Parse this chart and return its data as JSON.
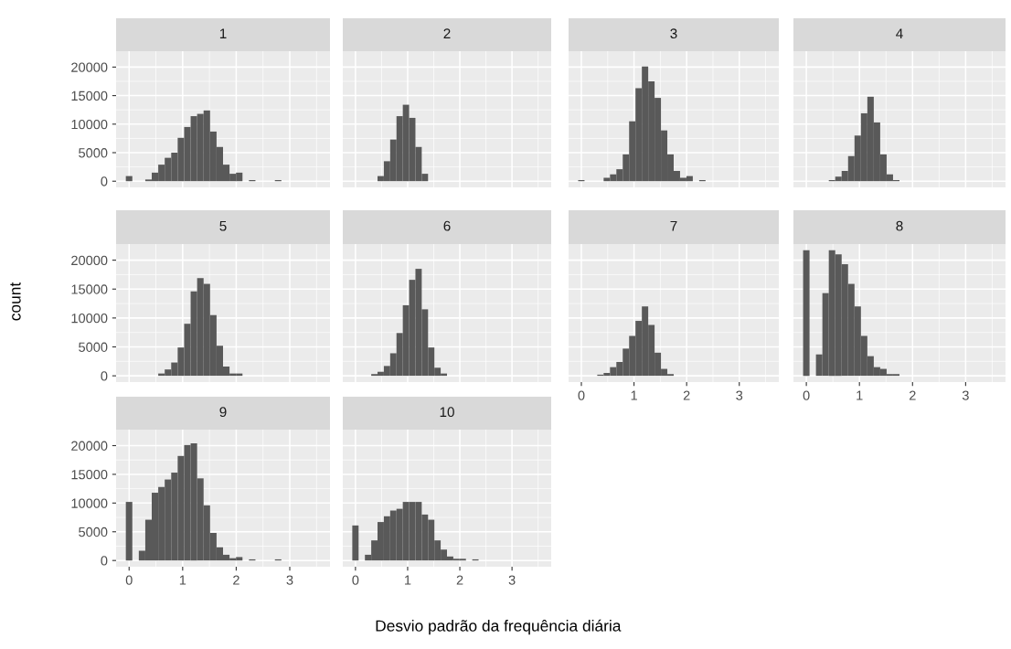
{
  "chart_data": [
    {
      "type": "histogram",
      "title": "1",
      "color": "#595959",
      "grid": true,
      "tick_labels": "y",
      "xlim": [
        -0.243,
        3.751
      ],
      "xticks": [
        0,
        1,
        2,
        3
      ],
      "ylim": [
        -1085,
        22785
      ],
      "yticks": [
        0,
        5000,
        10000,
        15000,
        20000
      ],
      "bins": [
        -0.061,
        0.06,
        0.181,
        0.302,
        0.423,
        0.544,
        0.665,
        0.786,
        0.907,
        1.028,
        1.149,
        1.27,
        1.391,
        1.512,
        1.633,
        1.754,
        1.875,
        1.996,
        2.117,
        2.238,
        2.359,
        2.48,
        2.601,
        2.722,
        2.843,
        2.964,
        3.085,
        3.206,
        3.327,
        3.448,
        3.569
      ],
      "values": [
        900,
        0,
        0,
        300,
        1500,
        2900,
        4100,
        5000,
        7600,
        9500,
        11400,
        11800,
        12400,
        8700,
        6000,
        2900,
        1300,
        1500,
        0,
        200,
        0,
        0,
        0,
        200,
        0,
        0,
        0,
        0,
        0,
        0
      ]
    },
    {
      "type": "histogram",
      "title": "2",
      "color": "#595959",
      "grid": true,
      "tick_labels": false,
      "xlim": [
        -0.243,
        3.751
      ],
      "xticks": [
        0,
        1,
        2,
        3
      ],
      "ylim": [
        -1085,
        22785
      ],
      "yticks": [
        0,
        5000,
        10000,
        15000,
        20000
      ],
      "bins": [
        -0.061,
        0.06,
        0.181,
        0.302,
        0.423,
        0.544,
        0.665,
        0.786,
        0.907,
        1.028,
        1.149,
        1.27,
        1.391,
        1.512,
        1.633,
        1.754,
        1.875,
        1.996,
        2.117,
        2.238,
        2.359,
        2.48,
        2.601,
        2.722,
        2.843,
        2.964,
        3.085,
        3.206,
        3.327,
        3.448,
        3.569
      ],
      "values": [
        0,
        0,
        0,
        0,
        900,
        3500,
        7300,
        11400,
        13400,
        11100,
        6000,
        1300,
        0,
        0,
        0,
        0,
        0,
        0,
        0,
        0,
        0,
        0,
        0,
        0,
        0,
        0,
        0,
        0,
        0,
        0
      ]
    },
    {
      "type": "histogram",
      "title": "3",
      "color": "#595959",
      "grid": true,
      "tick_labels": false,
      "xlim": [
        -0.243,
        3.751
      ],
      "xticks": [
        0,
        1,
        2,
        3
      ],
      "ylim": [
        -1085,
        22785
      ],
      "yticks": [
        0,
        5000,
        10000,
        15000,
        20000
      ],
      "bins": [
        -0.061,
        0.06,
        0.181,
        0.302,
        0.423,
        0.544,
        0.665,
        0.786,
        0.907,
        1.028,
        1.149,
        1.27,
        1.391,
        1.512,
        1.633,
        1.754,
        1.875,
        1.996,
        2.117,
        2.238,
        2.359,
        2.48,
        2.601,
        2.722,
        2.843,
        2.964,
        3.085,
        3.206,
        3.327,
        3.448,
        3.569
      ],
      "values": [
        200,
        0,
        0,
        0,
        600,
        1200,
        2100,
        4700,
        10500,
        16300,
        20100,
        17500,
        14600,
        8900,
        4700,
        1800,
        600,
        900,
        0,
        200,
        0,
        0,
        0,
        0,
        0,
        0,
        0,
        0,
        0,
        0
      ]
    },
    {
      "type": "histogram",
      "title": "4",
      "color": "#595959",
      "grid": true,
      "tick_labels": false,
      "xlim": [
        -0.243,
        3.751
      ],
      "xticks": [
        0,
        1,
        2,
        3
      ],
      "ylim": [
        -1085,
        22785
      ],
      "yticks": [
        0,
        5000,
        10000,
        15000,
        20000
      ],
      "bins": [
        -0.061,
        0.06,
        0.181,
        0.302,
        0.423,
        0.544,
        0.665,
        0.786,
        0.907,
        1.028,
        1.149,
        1.27,
        1.391,
        1.512,
        1.633,
        1.754,
        1.875,
        1.996,
        2.117,
        2.238,
        2.359,
        2.48,
        2.601,
        2.722,
        2.843,
        2.964,
        3.085,
        3.206,
        3.327,
        3.448,
        3.569
      ],
      "values": [
        0,
        0,
        0,
        0,
        200,
        800,
        1800,
        4400,
        8000,
        11900,
        14800,
        10300,
        4700,
        1200,
        200,
        0,
        0,
        0,
        0,
        0,
        0,
        0,
        0,
        0,
        0,
        0,
        0,
        0,
        0,
        0
      ]
    },
    {
      "type": "histogram",
      "title": "5",
      "ylabel": "count",
      "color": "#595959",
      "grid": true,
      "tick_labels": "y",
      "xlim": [
        -0.243,
        3.751
      ],
      "xticks": [
        0,
        1,
        2,
        3
      ],
      "ylim": [
        -1085,
        22785
      ],
      "yticks": [
        0,
        5000,
        10000,
        15000,
        20000
      ],
      "bins": [
        -0.061,
        0.06,
        0.181,
        0.302,
        0.423,
        0.544,
        0.665,
        0.786,
        0.907,
        1.028,
        1.149,
        1.27,
        1.391,
        1.512,
        1.633,
        1.754,
        1.875,
        1.996,
        2.117,
        2.238,
        2.359,
        2.48,
        2.601,
        2.722,
        2.843,
        2.964,
        3.085,
        3.206,
        3.327,
        3.448,
        3.569
      ],
      "values": [
        0,
        0,
        0,
        0,
        0,
        400,
        1100,
        2300,
        4900,
        9000,
        14600,
        16900,
        15900,
        10500,
        5200,
        1600,
        400,
        400,
        0,
        0,
        0,
        0,
        0,
        0,
        0,
        0,
        0,
        0,
        0,
        0
      ]
    },
    {
      "type": "histogram",
      "title": "6",
      "color": "#595959",
      "grid": true,
      "tick_labels": false,
      "xlim": [
        -0.243,
        3.751
      ],
      "xticks": [
        0,
        1,
        2,
        3
      ],
      "ylim": [
        -1085,
        22785
      ],
      "yticks": [
        0,
        5000,
        10000,
        15000,
        20000
      ],
      "bins": [
        -0.061,
        0.06,
        0.181,
        0.302,
        0.423,
        0.544,
        0.665,
        0.786,
        0.907,
        1.028,
        1.149,
        1.27,
        1.391,
        1.512,
        1.633,
        1.754,
        1.875,
        1.996,
        2.117,
        2.238,
        2.359,
        2.48,
        2.601,
        2.722,
        2.843,
        2.964,
        3.085,
        3.206,
        3.327,
        3.448,
        3.569
      ],
      "values": [
        0,
        0,
        0,
        300,
        700,
        1700,
        3900,
        7400,
        12200,
        16600,
        18500,
        11500,
        4900,
        1400,
        400,
        0,
        0,
        0,
        0,
        0,
        0,
        0,
        0,
        0,
        0,
        0,
        0,
        0,
        0,
        0
      ]
    },
    {
      "type": "histogram",
      "title": "7",
      "color": "#595959",
      "grid": true,
      "tick_labels": "x",
      "xlim": [
        -0.243,
        3.751
      ],
      "xticks": [
        0,
        1,
        2,
        3
      ],
      "ylim": [
        -1085,
        22785
      ],
      "yticks": [
        0,
        5000,
        10000,
        15000,
        20000
      ],
      "bins": [
        -0.061,
        0.06,
        0.181,
        0.302,
        0.423,
        0.544,
        0.665,
        0.786,
        0.907,
        1.028,
        1.149,
        1.27,
        1.391,
        1.512,
        1.633,
        1.754,
        1.875,
        1.996,
        2.117,
        2.238,
        2.359,
        2.48,
        2.601,
        2.722,
        2.843,
        2.964,
        3.085,
        3.206,
        3.327,
        3.448,
        3.569
      ],
      "values": [
        0,
        0,
        0,
        200,
        500,
        1500,
        2400,
        4700,
        6900,
        9500,
        12000,
        8800,
        4000,
        1200,
        300,
        0,
        0,
        0,
        0,
        0,
        0,
        0,
        0,
        0,
        0,
        0,
        0,
        0,
        0,
        0
      ]
    },
    {
      "type": "histogram",
      "title": "8",
      "color": "#595959",
      "grid": true,
      "tick_labels": "x",
      "xlim": [
        -0.243,
        3.751
      ],
      "xticks": [
        0,
        1,
        2,
        3
      ],
      "ylim": [
        -1085,
        22785
      ],
      "yticks": [
        0,
        5000,
        10000,
        15000,
        20000
      ],
      "bins": [
        -0.061,
        0.06,
        0.181,
        0.302,
        0.423,
        0.544,
        0.665,
        0.786,
        0.907,
        1.028,
        1.149,
        1.27,
        1.391,
        1.512,
        1.633,
        1.754,
        1.875,
        1.996,
        2.117,
        2.238,
        2.359,
        2.48,
        2.601,
        2.722,
        2.843,
        2.964,
        3.085,
        3.206,
        3.327,
        3.448,
        3.569
      ],
      "values": [
        21700,
        0,
        3700,
        14300,
        21700,
        21000,
        19300,
        15900,
        12000,
        6900,
        3400,
        1500,
        1200,
        300,
        300,
        0,
        0,
        0,
        0,
        0,
        0,
        0,
        0,
        0,
        0,
        0,
        0,
        0,
        0,
        0
      ]
    },
    {
      "type": "histogram",
      "title": "9",
      "color": "#595959",
      "grid": true,
      "xlim": [
        -0.243,
        3.751
      ],
      "xticks": [
        0,
        1,
        2,
        3
      ],
      "ylim": [
        -1085,
        22785
      ],
      "yticks": [
        0,
        5000,
        10000,
        15000,
        20000
      ],
      "bins": [
        -0.061,
        0.06,
        0.181,
        0.302,
        0.423,
        0.544,
        0.665,
        0.786,
        0.907,
        1.028,
        1.149,
        1.27,
        1.391,
        1.512,
        1.633,
        1.754,
        1.875,
        1.996,
        2.117,
        2.238,
        2.359,
        2.48,
        2.601,
        2.722,
        2.843,
        2.964,
        3.085,
        3.206,
        3.327,
        3.448,
        3.569
      ],
      "values": [
        10200,
        0,
        1700,
        7100,
        11800,
        12800,
        14100,
        15300,
        18200,
        20100,
        20400,
        14300,
        9600,
        4800,
        2300,
        1000,
        400,
        600,
        0,
        200,
        0,
        0,
        0,
        200,
        0,
        0,
        0,
        0,
        0,
        0
      ]
    },
    {
      "type": "histogram",
      "title": "10",
      "xlabel": "Desvio padrão da frequência diária",
      "color": "#595959",
      "grid": true,
      "tick_labels": "x",
      "xlim": [
        -0.243,
        3.751
      ],
      "xticks": [
        0,
        1,
        2,
        3
      ],
      "ylim": [
        -1085,
        22785
      ],
      "yticks": [
        0,
        5000,
        10000,
        15000,
        20000
      ],
      "bins": [
        -0.061,
        0.06,
        0.181,
        0.302,
        0.423,
        0.544,
        0.665,
        0.786,
        0.907,
        1.028,
        1.149,
        1.27,
        1.391,
        1.512,
        1.633,
        1.754,
        1.875,
        1.996,
        2.117,
        2.238,
        2.359,
        2.48,
        2.601,
        2.722,
        2.843,
        2.964,
        3.085,
        3.206,
        3.327,
        3.448,
        3.569
      ],
      "values": [
        6100,
        0,
        1000,
        3500,
        6700,
        7700,
        8700,
        9000,
        10200,
        10200,
        10200,
        8000,
        7100,
        3500,
        1900,
        700,
        300,
        300,
        0,
        200,
        0,
        0,
        0,
        0,
        0,
        0,
        0,
        0,
        0,
        0
      ]
    }
  ]
}
